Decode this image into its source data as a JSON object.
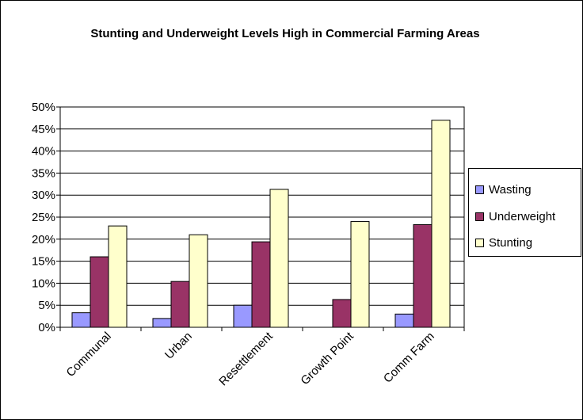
{
  "chart_data": {
    "type": "bar",
    "title": "Stunting and Underweight Levels High in Commercial Farming Areas",
    "categories": [
      "Communal",
      "Urban",
      "Resettlement",
      "Growth Point",
      "Comm Farm"
    ],
    "series": [
      {
        "name": "Wasting",
        "color": "#9999ff",
        "values": [
          3.3,
          2.0,
          5.0,
          0.0,
          3.0
        ]
      },
      {
        "name": "Underweight",
        "color": "#993366",
        "values": [
          16.0,
          10.4,
          19.4,
          6.3,
          23.3
        ]
      },
      {
        "name": "Stunting",
        "color": "#ffffcc",
        "values": [
          23.0,
          21.0,
          31.3,
          24.0,
          47.0
        ]
      }
    ],
    "ylim": [
      0,
      50
    ],
    "yticks": [
      "0%",
      "5%",
      "10%",
      "15%",
      "20%",
      "25%",
      "30%",
      "35%",
      "40%",
      "45%",
      "50%"
    ],
    "grid": true,
    "legend_position": "right"
  }
}
